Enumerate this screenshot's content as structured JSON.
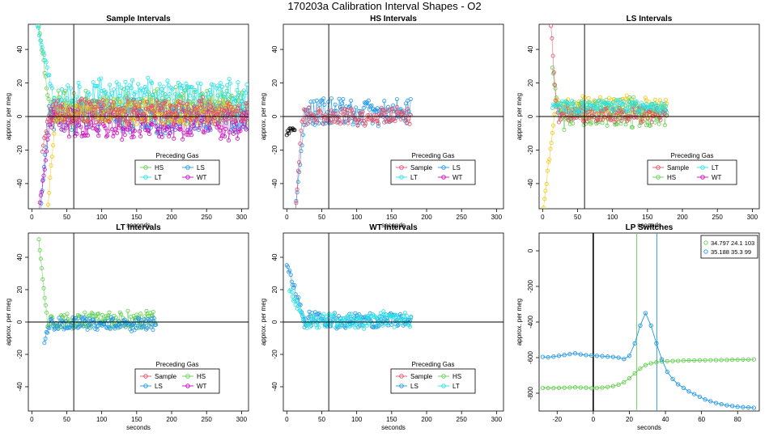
{
  "figure": {
    "title": "170203a   Calibration Interval Shapes - O2"
  },
  "colors": {
    "Sample": "#DF536B",
    "HS": "#61D04F",
    "LS": "#2297E6",
    "LT": "#28E2E5",
    "WT": "#CD0BBC",
    "Gold": "#F5C710",
    "Black": "#000000"
  },
  "chart_data": [
    {
      "id": "sample",
      "type": "scatter",
      "title": "Sample Intervals",
      "xlabel": "seconds",
      "ylabel": "approx. per meg",
      "xlim": [
        -5,
        310
      ],
      "ylim": [
        -55,
        55
      ],
      "xticks": [
        0,
        50,
        100,
        150,
        200,
        250,
        300
      ],
      "yticks": [
        -40,
        -20,
        0,
        20,
        40
      ],
      "hline": 0,
      "vline": 60,
      "legend": {
        "title": "Preceding Gas",
        "cols": 2,
        "entries": [
          {
            "label": "HS",
            "color": "HS"
          },
          {
            "label": "LS",
            "color": "LS"
          },
          {
            "label": "LT",
            "color": "LT"
          },
          {
            "label": "WT",
            "color": "WT"
          }
        ]
      },
      "series": [
        {
          "name": "HS",
          "color": "HS",
          "spike": {
            "t0": 10,
            "t1": 25,
            "from": 55,
            "to": 6
          },
          "x_start": 10,
          "x_end": 310,
          "center": 6,
          "spread": 12,
          "seed": 11
        },
        {
          "name": "LS",
          "color": "LS",
          "spike": {
            "t0": 12,
            "t1": 24,
            "from": -58,
            "to": 0
          },
          "x_start": 12,
          "x_end": 310,
          "center": 0,
          "spread": 11,
          "seed": 23
        },
        {
          "name": "LT",
          "color": "LT",
          "spike": {
            "t0": 8,
            "t1": 30,
            "from": 55,
            "to": 14
          },
          "x_start": 8,
          "x_end": 310,
          "center": 12,
          "spread": 12,
          "seed": 37
        },
        {
          "name": "WT",
          "color": "WT",
          "spike": {
            "t0": 10,
            "t1": 26,
            "from": -58,
            "to": -4
          },
          "x_start": 10,
          "x_end": 310,
          "center": -4,
          "spread": 11,
          "seed": 41
        },
        {
          "name": "Gold",
          "color": "Gold",
          "spike": {
            "t0": 22,
            "t1": 34,
            "from": -58,
            "to": 2
          },
          "x_start": 22,
          "x_end": 290,
          "center": 3,
          "spread": 9,
          "seed": 53
        },
        {
          "name": "Sample",
          "color": "Sample",
          "spike": {
            "t0": 15,
            "t1": 25,
            "from": -20,
            "to": 3
          },
          "x_start": 15,
          "x_end": 310,
          "center": 3,
          "spread": 9,
          "seed": 67
        }
      ]
    },
    {
      "id": "hs",
      "type": "scatter",
      "title": "HS Intervals",
      "xlabel": "seconds",
      "ylabel": "approx. per meg",
      "xlim": [
        -5,
        310
      ],
      "ylim": [
        -55,
        55
      ],
      "xticks": [
        0,
        50,
        100,
        150,
        200,
        250,
        300
      ],
      "yticks": [
        -40,
        -20,
        0,
        20,
        40
      ],
      "hline": 0,
      "vline": 60,
      "legend": {
        "title": "Preceding Gas",
        "cols": 2,
        "entries": [
          {
            "label": "Sample",
            "color": "Sample"
          },
          {
            "label": "LS",
            "color": "LS"
          },
          {
            "label": "LT",
            "color": "LT"
          },
          {
            "label": "WT",
            "color": "WT"
          }
        ]
      },
      "series": [
        {
          "name": "Black",
          "color": "Black",
          "spike": {
            "t0": 0,
            "t1": 12,
            "from": -10,
            "to": -6
          },
          "x_start": 0,
          "x_end": 12,
          "center": -7,
          "spread": 2,
          "seed": 5
        },
        {
          "name": "LS",
          "color": "LS",
          "spike": {
            "t0": 12,
            "t1": 26,
            "from": -58,
            "to": 2
          },
          "x_start": 12,
          "x_end": 178,
          "center": 2,
          "spread": 10,
          "seed": 29
        },
        {
          "name": "Sample",
          "color": "Sample",
          "spike": {
            "t0": 12,
            "t1": 22,
            "from": -58,
            "to": 0
          },
          "x_start": 12,
          "x_end": 178,
          "center": 0,
          "spread": 6,
          "seed": 31
        }
      ]
    },
    {
      "id": "ls",
      "type": "scatter",
      "title": "LS Intervals",
      "xlabel": "seconds",
      "ylabel": "approx. per meg",
      "xlim": [
        -5,
        310
      ],
      "ylim": [
        -55,
        55
      ],
      "xticks": [
        0,
        50,
        100,
        150,
        200,
        250,
        300
      ],
      "yticks": [
        -40,
        -20,
        0,
        20,
        40
      ],
      "hline": 0,
      "vline": 60,
      "legend": {
        "title": "Preceding Gas",
        "cols": 3,
        "entries": [
          {
            "label": "Sample",
            "color": "Sample"
          },
          {
            "label": "LT",
            "color": "LT"
          },
          {
            "label": "HS",
            "color": "HS"
          },
          {
            "label": "WT",
            "color": "WT"
          }
        ]
      },
      "series": [
        {
          "name": "Gold",
          "color": "Gold",
          "spike": {
            "t0": 0,
            "t1": 18,
            "from": -58,
            "to": 5
          },
          "x_start": 0,
          "x_end": 178,
          "center": 5,
          "spread": 8,
          "seed": 43
        },
        {
          "name": "HS",
          "color": "HS",
          "spike": {
            "t0": 14,
            "t1": 22,
            "from": 30,
            "to": 2
          },
          "x_start": 14,
          "x_end": 178,
          "center": 2,
          "spread": 10,
          "seed": 59
        },
        {
          "name": "Sample",
          "color": "Sample",
          "spike": {
            "t0": 12,
            "t1": 20,
            "from": 55,
            "to": 2
          },
          "x_start": 12,
          "x_end": 178,
          "center": 1,
          "spread": 6,
          "seed": 71
        },
        {
          "name": "LT",
          "color": "LT",
          "spike": {
            "t0": 14,
            "t1": 22,
            "from": 6,
            "to": 6
          },
          "x_start": 14,
          "x_end": 178,
          "center": 6,
          "spread": 5,
          "seed": 83
        }
      ]
    },
    {
      "id": "lt",
      "type": "scatter",
      "title": "LT Intervals",
      "xlabel": "seconds",
      "ylabel": "approx. per meg",
      "xlim": [
        -5,
        310
      ],
      "ylim": [
        -55,
        55
      ],
      "xticks": [
        0,
        50,
        100,
        150,
        200,
        250,
        300
      ],
      "yticks": [
        -40,
        -20,
        0,
        20,
        40
      ],
      "hline": 0,
      "vline": 60,
      "legend": {
        "title": "Preceding Gas",
        "cols": 2,
        "entries": [
          {
            "label": "Sample",
            "color": "Sample"
          },
          {
            "label": "HS",
            "color": "HS"
          },
          {
            "label": "LS",
            "color": "LS"
          },
          {
            "label": "WT",
            "color": "WT"
          }
        ]
      },
      "series": [
        {
          "name": "HS",
          "color": "HS",
          "spike": {
            "t0": 10,
            "t1": 22,
            "from": 52,
            "to": 1
          },
          "x_start": 10,
          "x_end": 178,
          "center": 1,
          "spread": 6,
          "seed": 97
        },
        {
          "name": "LS",
          "color": "LS",
          "spike": {
            "t0": 18,
            "t1": 26,
            "from": -12,
            "to": -1
          },
          "x_start": 18,
          "x_end": 178,
          "center": -1,
          "spread": 5,
          "seed": 101
        }
      ]
    },
    {
      "id": "wt",
      "type": "scatter",
      "title": "WT Intervals",
      "xlabel": "seconds",
      "ylabel": "approx. per meg",
      "xlim": [
        -5,
        310
      ],
      "ylim": [
        -55,
        55
      ],
      "xticks": [
        0,
        50,
        100,
        150,
        200,
        250,
        300
      ],
      "yticks": [
        -40,
        -20,
        0,
        20,
        40
      ],
      "hline": 0,
      "vline": 60,
      "legend": {
        "title": "Preceding Gas",
        "cols": 2,
        "entries": [
          {
            "label": "Sample",
            "color": "Sample"
          },
          {
            "label": "HS",
            "color": "HS"
          },
          {
            "label": "LS",
            "color": "LS"
          },
          {
            "label": "LT",
            "color": "LT"
          }
        ]
      },
      "series": [
        {
          "name": "LS",
          "color": "LS",
          "spike": {
            "t0": 0,
            "t1": 25,
            "from": 36,
            "to": 2
          },
          "x_start": 0,
          "x_end": 178,
          "center": 1,
          "spread": 6,
          "seed": 113
        },
        {
          "name": "LT",
          "color": "LT",
          "spike": {
            "t0": 4,
            "t1": 24,
            "from": 20,
            "to": 2
          },
          "x_start": 4,
          "x_end": 178,
          "center": 1,
          "spread": 6,
          "seed": 127
        }
      ]
    },
    {
      "id": "lp",
      "type": "line",
      "title": "LP Switches",
      "xlabel": "seconds",
      "ylabel": "approx. per meg",
      "xlim": [
        -30,
        92
      ],
      "ylim": [
        -900,
        100
      ],
      "xticks": [
        -20,
        0,
        20,
        40,
        60,
        80
      ],
      "yticks": [
        -800,
        -600,
        -400,
        -200,
        0
      ],
      "vline_bold": 0,
      "vlines_colored": [
        {
          "x": 24.1,
          "color": "HS"
        },
        {
          "x": 35.3,
          "color": "LS"
        }
      ],
      "legend": {
        "entries": [
          {
            "label": "34.797 24.1 103",
            "color": "HS"
          },
          {
            "label": "35.188 35.3 99",
            "color": "LS"
          }
        ]
      },
      "series": [
        {
          "name": "34.797 24.1 103",
          "color": "HS",
          "x": [
            -28,
            -25,
            -22,
            -19,
            -16,
            -13,
            -10,
            -7,
            -4,
            -1,
            2,
            5,
            8,
            11,
            14,
            17,
            20,
            23,
            26,
            29,
            32,
            35,
            38,
            41,
            44,
            47,
            50,
            53,
            56,
            59,
            62,
            65,
            68,
            71,
            74,
            77,
            80,
            83,
            86,
            89
          ],
          "y": [
            -770,
            -771,
            -771,
            -770,
            -769,
            -768,
            -767,
            -768,
            -769,
            -772,
            -771,
            -768,
            -765,
            -760,
            -752,
            -738,
            -716,
            -688,
            -662,
            -642,
            -632,
            -626,
            -622,
            -620,
            -619,
            -618,
            -617,
            -616,
            -616,
            -615,
            -615,
            -614,
            -614,
            -613,
            -613,
            -612,
            -612,
            -611,
            -611,
            -610
          ]
        },
        {
          "name": "35.188 35.3 99",
          "color": "LS",
          "x": [
            -28,
            -25,
            -22,
            -19,
            -16,
            -13,
            -10,
            -7,
            -4,
            -1,
            2,
            5,
            8,
            11,
            14,
            17,
            20,
            23,
            26,
            29,
            32,
            35,
            38,
            41,
            44,
            47,
            50,
            53,
            56,
            59,
            62,
            65,
            68,
            71,
            74,
            77,
            80,
            83,
            86,
            89
          ],
          "y": [
            -596,
            -598,
            -594,
            -590,
            -585,
            -580,
            -576,
            -582,
            -586,
            -588,
            -590,
            -592,
            -594,
            -596,
            -600,
            -608,
            -590,
            -520,
            -420,
            -350,
            -420,
            -520,
            -610,
            -680,
            -720,
            -750,
            -770,
            -790,
            -805,
            -820,
            -835,
            -845,
            -855,
            -862,
            -868,
            -872,
            -876,
            -878,
            -880,
            -882
          ]
        }
      ]
    }
  ]
}
